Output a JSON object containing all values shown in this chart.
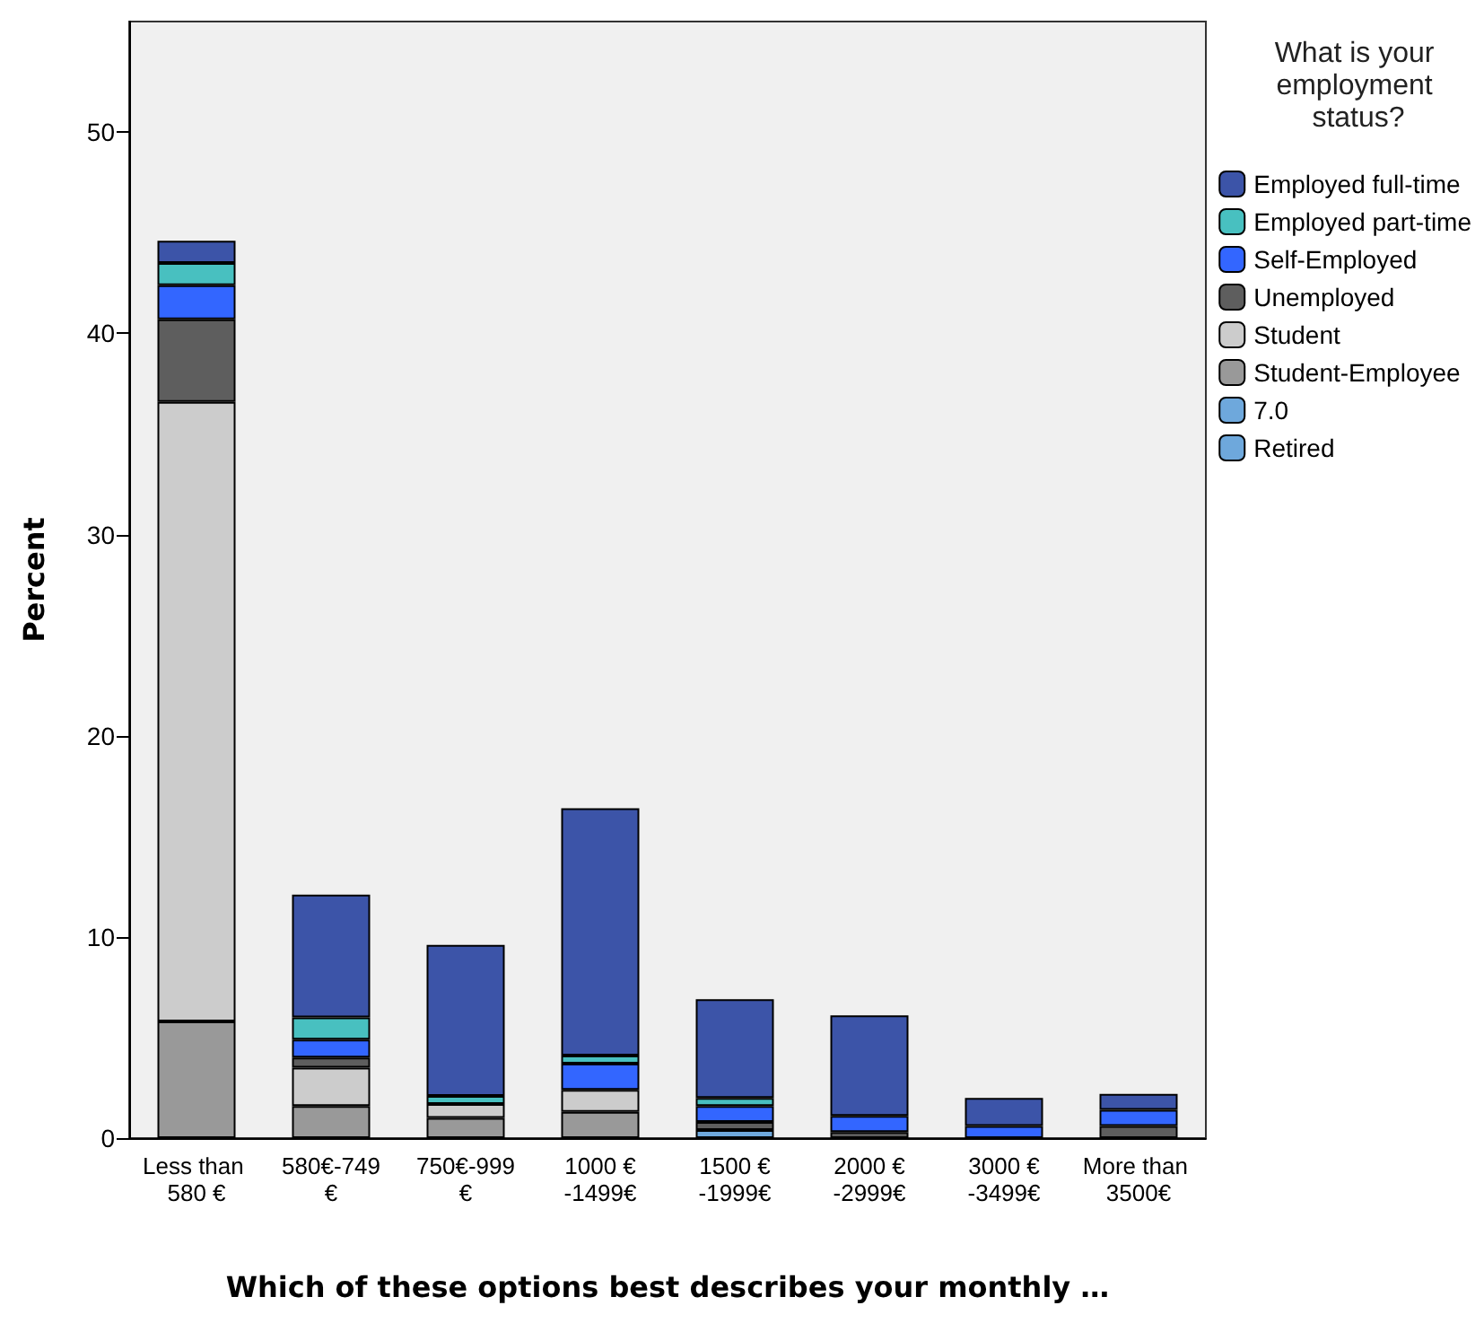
{
  "chart_data": {
    "type": "bar",
    "stacked": true,
    "xlabel": "Which of these options best describes your monthly …",
    "ylabel": "Percent",
    "legend_title": "What is your employment status?",
    "legend": "right",
    "grid": false,
    "categories": [
      "Less than 580 €",
      "580€-749€",
      "750€-999€",
      "1000 €-1499€",
      "1500 €-1999€",
      "2000 €-2999€",
      "3000 €-3499€",
      "More than 3500€"
    ],
    "ylim": [
      0,
      55.5
    ],
    "yticks": [
      0,
      10,
      20,
      30,
      40,
      50
    ],
    "series": [
      {
        "name": "Student-Employee",
        "color": "#999999",
        "values": [
          5.8,
          1.6,
          1.0,
          1.3,
          null,
          null,
          null,
          null
        ]
      },
      {
        "name": "Student",
        "color": "#cccccc",
        "values": [
          30.8,
          1.9,
          0.7,
          1.1,
          null,
          null,
          null,
          null
        ]
      },
      {
        "name": "Unemployed",
        "color": "#5e5e5e",
        "values": [
          4.1,
          0.5,
          null,
          null,
          0.4,
          0.3,
          null,
          0.6
        ]
      },
      {
        "name": "Self-Employed",
        "color": "#3366ff",
        "values": [
          1.7,
          0.9,
          null,
          1.3,
          0.8,
          0.8,
          0.6,
          0.8
        ]
      },
      {
        "name": "Employed part-time",
        "color": "#48c0c0",
        "values": [
          1.1,
          1.1,
          0.4,
          0.4,
          0.4,
          null,
          null,
          null
        ]
      },
      {
        "name": "Employed full-time",
        "color": "#3c54a8",
        "values": [
          1.1,
          6.1,
          7.5,
          12.3,
          4.9,
          5.0,
          1.4,
          0.8
        ]
      },
      {
        "name": "7.0",
        "color": "#6ea8dc",
        "values": [
          null,
          null,
          null,
          null,
          null,
          null,
          null,
          null
        ]
      },
      {
        "name": "Retired",
        "color": "#6ea8dc",
        "values": [
          null,
          null,
          null,
          null,
          0.4,
          null,
          null,
          null
        ]
      }
    ]
  }
}
